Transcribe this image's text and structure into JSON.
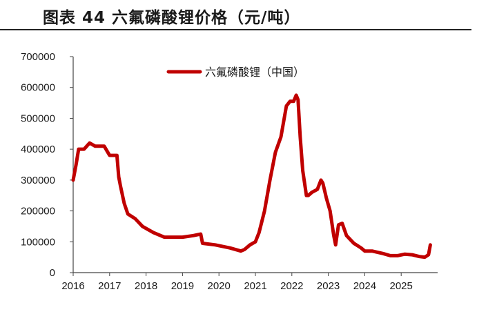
{
  "figure": {
    "title": "图表 44 六氟磷酸锂价格（元/吨）"
  },
  "chart_data": {
    "type": "line",
    "title": "图表 44 六氟磷酸锂价格（元/吨）",
    "xlabel": "",
    "ylabel": "",
    "xlim": [
      2016.0,
      2026.0
    ],
    "ylim": [
      0,
      700000
    ],
    "x_ticks": [
      "2016",
      "2017",
      "2018",
      "2019",
      "2020",
      "2021",
      "2022",
      "2023",
      "2024",
      "2025"
    ],
    "y_ticks": [
      "0",
      "100000",
      "200000",
      "300000",
      "400000",
      "500000",
      "600000",
      "700000"
    ],
    "legend_position": "top",
    "grid": false,
    "series": [
      {
        "name": "六氟磷酸锂（中国）",
        "color": "#C00000",
        "x": [
          2016.0,
          2016.08,
          2016.15,
          2016.3,
          2016.45,
          2016.6,
          2016.85,
          2017.0,
          2017.2,
          2017.25,
          2017.3,
          2017.4,
          2017.5,
          2017.7,
          2017.9,
          2018.2,
          2018.5,
          2018.8,
          2019.0,
          2019.3,
          2019.5,
          2019.55,
          2019.9,
          2020.3,
          2020.6,
          2020.7,
          2020.85,
          2021.0,
          2021.1,
          2021.25,
          2021.4,
          2021.55,
          2021.7,
          2021.85,
          2021.95,
          2022.05,
          2022.12,
          2022.17,
          2022.23,
          2022.3,
          2022.4,
          2022.45,
          2022.55,
          2022.7,
          2022.8,
          2022.85,
          2022.95,
          2023.05,
          2023.15,
          2023.2,
          2023.28,
          2023.38,
          2023.5,
          2023.7,
          2023.9,
          2024.0,
          2024.2,
          2024.5,
          2024.7,
          2024.9,
          2025.1,
          2025.3,
          2025.5,
          2025.65,
          2025.75,
          2025.8
        ],
        "values": [
          300000,
          350000,
          400000,
          400000,
          420000,
          410000,
          410000,
          380000,
          380000,
          310000,
          280000,
          225000,
          190000,
          175000,
          150000,
          130000,
          115000,
          115000,
          115000,
          120000,
          125000,
          95000,
          90000,
          80000,
          70000,
          75000,
          90000,
          100000,
          130000,
          200000,
          300000,
          390000,
          440000,
          540000,
          555000,
          555000,
          575000,
          560000,
          440000,
          330000,
          250000,
          250000,
          260000,
          270000,
          300000,
          290000,
          240000,
          200000,
          120000,
          90000,
          155000,
          160000,
          120000,
          95000,
          80000,
          70000,
          70000,
          62000,
          55000,
          55000,
          60000,
          58000,
          52000,
          50000,
          58000,
          90000
        ]
      }
    ]
  }
}
